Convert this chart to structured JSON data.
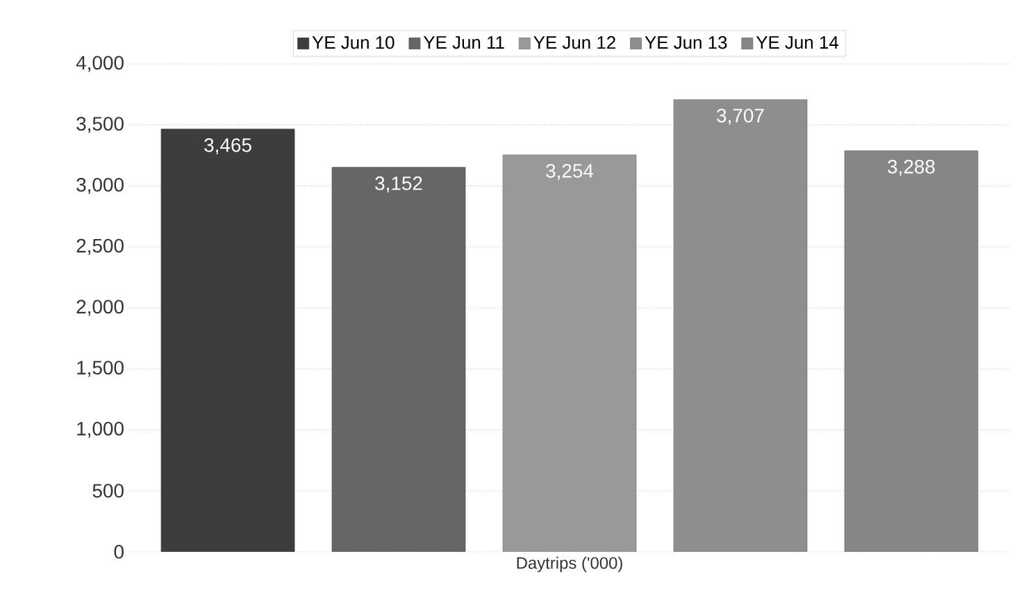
{
  "chart_data": {
    "type": "bar",
    "categories": [
      "Daytrips ('000)"
    ],
    "series": [
      {
        "name": "YE Jun 10",
        "color": "#3d3d3d",
        "values": [
          3465
        ],
        "value_labels": [
          "3,465"
        ]
      },
      {
        "name": "YE Jun 11",
        "color": "#666666",
        "values": [
          3152
        ],
        "value_labels": [
          "3,152"
        ]
      },
      {
        "name": "YE Jun 12",
        "color": "#999999",
        "values": [
          3254
        ],
        "value_labels": [
          "3,254"
        ]
      },
      {
        "name": "YE Jun 13",
        "color": "#8e8e8e",
        "values": [
          3707
        ],
        "value_labels": [
          "3,707"
        ]
      },
      {
        "name": "YE Jun 14",
        "color": "#868686",
        "values": [
          3288
        ],
        "value_labels": [
          "3,288"
        ]
      }
    ],
    "ylim": [
      0,
      4000
    ],
    "yticks": [
      0,
      500,
      {
        "value": 1000,
        "label": "1,000"
      },
      {
        "value": 1500,
        "label": "1,500"
      },
      {
        "value": 2000,
        "label": "2,000"
      },
      {
        "value": 2500,
        "label": "2,500"
      },
      {
        "value": 3000,
        "label": "3,000"
      },
      {
        "value": 3500,
        "label": "3,500"
      },
      {
        "value": 4000,
        "label": "4,000"
      }
    ],
    "grid": "y",
    "legend": "top"
  }
}
